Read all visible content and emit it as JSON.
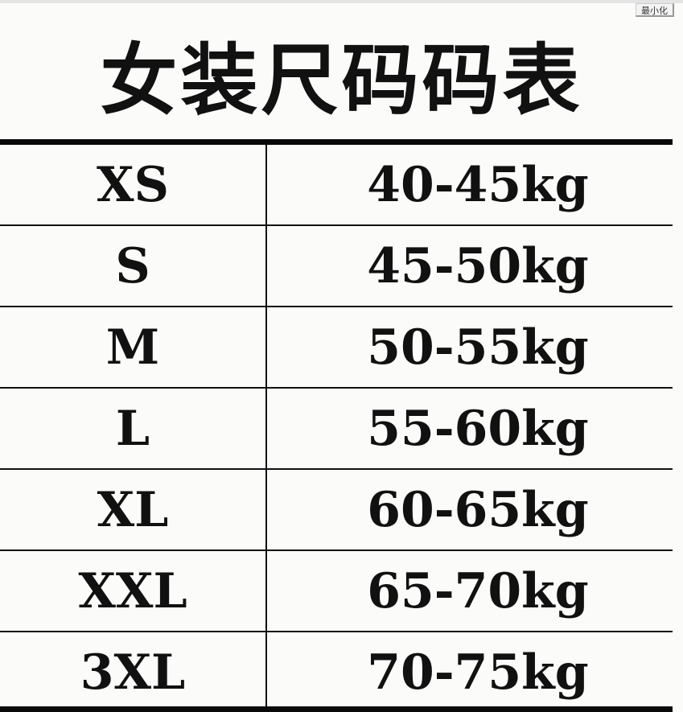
{
  "window": {
    "minimize_label": "最小化"
  },
  "title": "女装尺码码表",
  "rows": [
    {
      "size": "XS",
      "weight": "40-45kg"
    },
    {
      "size": "S",
      "weight": "45-50kg"
    },
    {
      "size": "M",
      "weight": "50-55kg"
    },
    {
      "size": "L",
      "weight": "55-60kg"
    },
    {
      "size": "XL",
      "weight": "60-65kg"
    },
    {
      "size": "XXL",
      "weight": "65-70kg"
    },
    {
      "size": "3XL",
      "weight": "70-75kg"
    }
  ]
}
